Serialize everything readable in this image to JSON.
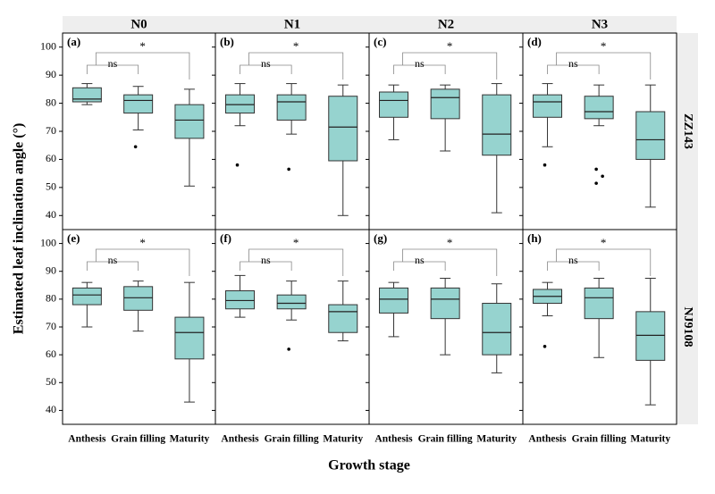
{
  "figure": {
    "ylabel": "Estimated leaf inclination angle (°)",
    "xlabel": "Growth stage",
    "columns": [
      "N0",
      "N1",
      "N2",
      "N3"
    ],
    "rows": [
      "ZZ143",
      "NJ9108"
    ],
    "categories": [
      "Anthesis",
      "Grain filling",
      "Maturity"
    ],
    "ylim": [
      35,
      105
    ],
    "yticks": [
      40,
      50,
      60,
      70,
      80,
      90,
      100
    ],
    "box_color": "#96d3cf",
    "brackets": [
      "ns",
      "*"
    ]
  },
  "chart_data": [
    {
      "type": "box",
      "label": "(a)",
      "boxes": [
        {
          "low": 79.5,
          "q1": 80.5,
          "median": 81.5,
          "q3": 85.5,
          "high": 87,
          "outliers": []
        },
        {
          "low": 70.5,
          "q1": 76.5,
          "median": 81,
          "q3": 83,
          "high": 86,
          "outliers": [
            64.5
          ]
        },
        {
          "low": 50.5,
          "q1": 67.5,
          "median": 74,
          "q3": 79.5,
          "high": 85,
          "outliers": []
        }
      ]
    },
    {
      "type": "box",
      "label": "(b)",
      "boxes": [
        {
          "low": 72,
          "q1": 76.5,
          "median": 79.5,
          "q3": 83,
          "high": 87,
          "outliers": [
            58
          ]
        },
        {
          "low": 69,
          "q1": 74,
          "median": 80.5,
          "q3": 83,
          "high": 87,
          "outliers": [
            56.5
          ]
        },
        {
          "low": 40,
          "q1": 59.5,
          "median": 71.5,
          "q3": 82.5,
          "high": 86.5,
          "outliers": []
        }
      ]
    },
    {
      "type": "box",
      "label": "(c)",
      "boxes": [
        {
          "low": 67,
          "q1": 75,
          "median": 81,
          "q3": 84,
          "high": 86.5,
          "outliers": []
        },
        {
          "low": 63,
          "q1": 74.5,
          "median": 82,
          "q3": 85,
          "high": 86.5,
          "outliers": []
        },
        {
          "low": 41,
          "q1": 61.5,
          "median": 69,
          "q3": 83,
          "high": 87,
          "outliers": []
        }
      ]
    },
    {
      "type": "box",
      "label": "(d)",
      "boxes": [
        {
          "low": 64.5,
          "q1": 75,
          "median": 80.5,
          "q3": 83,
          "high": 87,
          "outliers": [
            58
          ]
        },
        {
          "low": 72,
          "q1": 74.5,
          "median": 77,
          "q3": 82.5,
          "high": 86.5,
          "outliers": [
            56.5,
            54,
            51.5
          ]
        },
        {
          "low": 43,
          "q1": 60,
          "median": 67,
          "q3": 77,
          "high": 86.5,
          "outliers": []
        }
      ]
    },
    {
      "type": "box",
      "label": "(e)",
      "boxes": [
        {
          "low": 70,
          "q1": 78,
          "median": 81.5,
          "q3": 84,
          "high": 86,
          "outliers": []
        },
        {
          "low": 68.5,
          "q1": 76,
          "median": 80.5,
          "q3": 84.5,
          "high": 86.5,
          "outliers": []
        },
        {
          "low": 43,
          "q1": 58.5,
          "median": 68,
          "q3": 73.5,
          "high": 86,
          "outliers": []
        }
      ]
    },
    {
      "type": "box",
      "label": "(f)",
      "boxes": [
        {
          "low": 73.5,
          "q1": 76.5,
          "median": 79.5,
          "q3": 83,
          "high": 88.5,
          "outliers": []
        },
        {
          "low": 72.5,
          "q1": 76.5,
          "median": 78.5,
          "q3": 81.5,
          "high": 86.5,
          "outliers": [
            62
          ]
        },
        {
          "low": 65,
          "q1": 68,
          "median": 75.5,
          "q3": 78,
          "high": 86.5,
          "outliers": []
        }
      ]
    },
    {
      "type": "box",
      "label": "(g)",
      "boxes": [
        {
          "low": 66.5,
          "q1": 75,
          "median": 80,
          "q3": 84,
          "high": 86,
          "outliers": []
        },
        {
          "low": 60,
          "q1": 73,
          "median": 80,
          "q3": 84,
          "high": 87.5,
          "outliers": []
        },
        {
          "low": 53.5,
          "q1": 60,
          "median": 68,
          "q3": 78.5,
          "high": 85.5,
          "outliers": []
        }
      ]
    },
    {
      "type": "box",
      "label": "(h)",
      "boxes": [
        {
          "low": 74,
          "q1": 78.5,
          "median": 81,
          "q3": 83.5,
          "high": 86,
          "outliers": [
            63
          ]
        },
        {
          "low": 59,
          "q1": 73,
          "median": 80.5,
          "q3": 84,
          "high": 87.5,
          "outliers": []
        },
        {
          "low": 42,
          "q1": 58,
          "median": 67,
          "q3": 75.5,
          "high": 87.5,
          "outliers": []
        }
      ]
    }
  ]
}
